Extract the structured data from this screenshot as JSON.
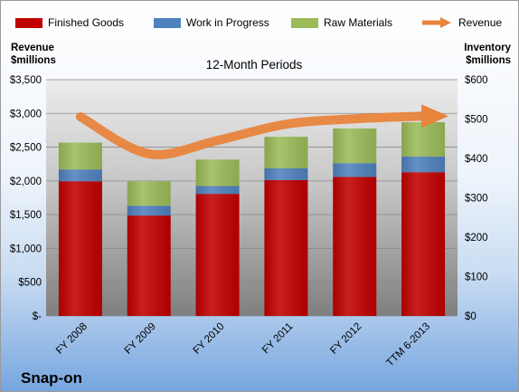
{
  "chart_data": {
    "type": "bar",
    "subtitle": "12-Month Periods",
    "categories": [
      "FY 2008",
      "FY 2009",
      "FY 2010",
      "FY 2011",
      "FY 2012",
      "TTM 6-2013"
    ],
    "series": [
      {
        "name": "Finished Goods",
        "axis": "right",
        "color": "#c00000",
        "values": [
          342,
          255,
          310,
          345,
          353,
          365
        ]
      },
      {
        "name": "Work in Progress",
        "axis": "right",
        "color": "#4f81bd",
        "values": [
          30,
          25,
          20,
          30,
          35,
          40
        ]
      },
      {
        "name": "Raw Materials",
        "axis": "right",
        "color": "#9bbb59",
        "values": [
          68,
          62,
          67,
          80,
          88,
          87
        ]
      },
      {
        "name": "Revenue",
        "axis": "left",
        "type": "line",
        "color": "#e8843c",
        "values": [
          2950,
          2400,
          2600,
          2840,
          2920,
          2960
        ]
      }
    ],
    "ylabel": "Revenue\n$millions",
    "ylabel_right": "Inventory\n$millions",
    "ylim": [
      0,
      3500
    ],
    "ylim_right": [
      0,
      600
    ],
    "yticks": [
      "$-",
      "$500",
      "$1,000",
      "$1,500",
      "$2,000",
      "$2,500",
      "$3,000",
      "$3,500"
    ],
    "yticks_right": [
      "$0",
      "$100",
      "$200",
      "$300",
      "$400",
      "$500",
      "$600"
    ],
    "stacked": true,
    "legend": "top",
    "grid": true
  },
  "company": "Snap-on"
}
